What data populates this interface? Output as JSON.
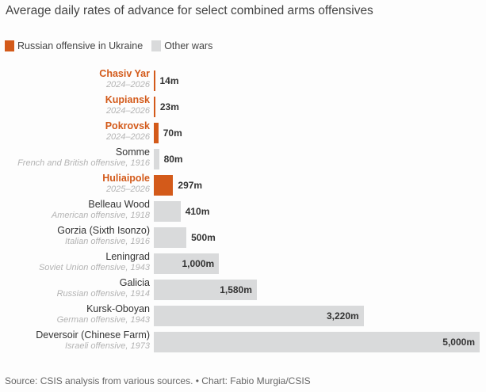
{
  "chart_data": {
    "type": "bar",
    "orientation": "horizontal",
    "title": "Average daily rates of advance for select combined arms offensives",
    "unit": "m",
    "xlim": [
      0,
      5000
    ],
    "legend": [
      {
        "label": "Russian offensive in Ukraine",
        "color": "#d35a1a"
      },
      {
        "label": "Other wars",
        "color": "#d9dadb"
      }
    ],
    "rows": [
      {
        "name": "Chasiv Yar",
        "sub": "2024–2026",
        "value": 14,
        "label": "14m",
        "group": "russian"
      },
      {
        "name": "Kupiansk",
        "sub": "2024–2026",
        "value": 23,
        "label": "23m",
        "group": "russian"
      },
      {
        "name": "Pokrovsk",
        "sub": "2024–2026",
        "value": 70,
        "label": "70m",
        "group": "russian"
      },
      {
        "name": "Somme",
        "sub": "French and British offensive, 1916",
        "value": 80,
        "label": "80m",
        "group": "other"
      },
      {
        "name": "Huliaipole",
        "sub": "2025–2026",
        "value": 297,
        "label": "297m",
        "group": "russian"
      },
      {
        "name": "Belleau Wood",
        "sub": "American offensive, 1918",
        "value": 410,
        "label": "410m",
        "group": "other"
      },
      {
        "name": "Gorzia (Sixth Isonzo)",
        "sub": "Italian offensive, 1916",
        "value": 500,
        "label": "500m",
        "group": "other"
      },
      {
        "name": "Leningrad",
        "sub": "Soviet Union offensive, 1943",
        "value": 1000,
        "label": "1,000m",
        "group": "other"
      },
      {
        "name": "Galicia",
        "sub": "Russian offensive, 1914",
        "value": 1580,
        "label": "1,580m",
        "group": "other"
      },
      {
        "name": "Kursk-Oboyan",
        "sub": "German offensive, 1943",
        "value": 3220,
        "label": "3,220m",
        "group": "other"
      },
      {
        "name": "Deversoir (Chinese Farm)",
        "sub": "Israeli offensive, 1973",
        "value": 5000,
        "label": "5,000m",
        "group": "other"
      }
    ]
  },
  "source": "Source: CSIS analysis from various sources. • Chart: Fabio Murgia/CSIS"
}
